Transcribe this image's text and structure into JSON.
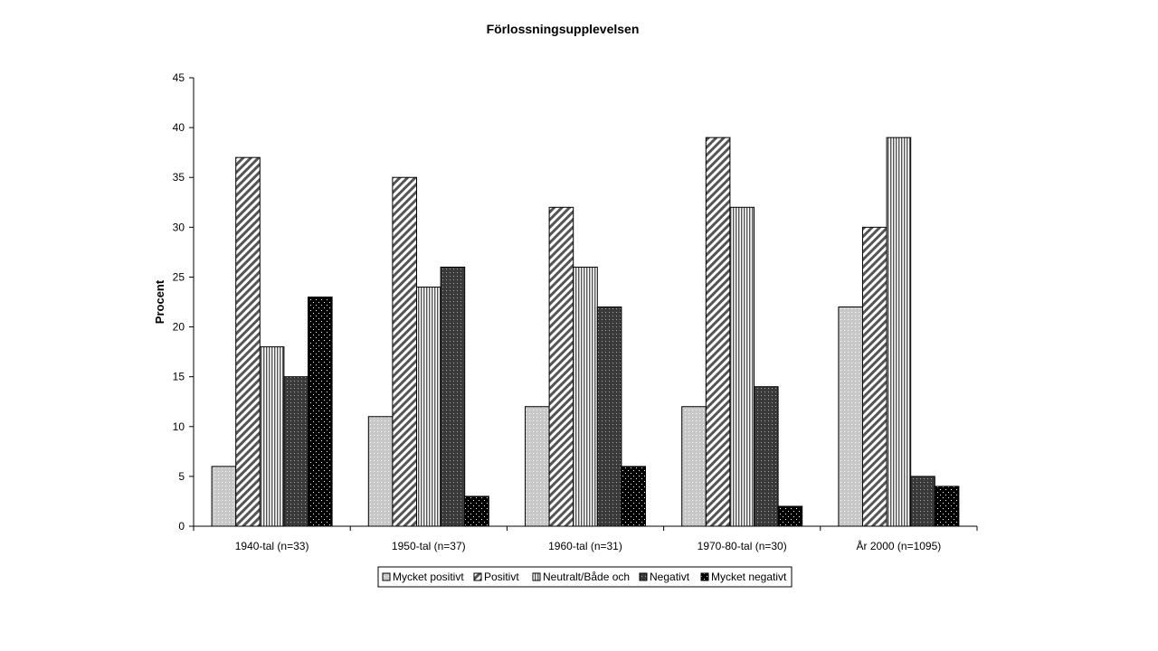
{
  "chart_data": {
    "type": "bar",
    "title": "Förlossningsupplevelsen",
    "xlabel": "",
    "ylabel": "Procent",
    "ylim": [
      0,
      45
    ],
    "yticks": [
      0,
      5,
      10,
      15,
      20,
      25,
      30,
      35,
      40,
      45
    ],
    "categories": [
      "1940-tal (n=33)",
      "1950-tal (n=37)",
      "1960-tal (n=31)",
      "1970-80-tal (n=30)",
      "År 2000 (n=1095)"
    ],
    "series": [
      {
        "name": "Mycket positivt",
        "pattern": "dots-light",
        "values": [
          6,
          11,
          12,
          12,
          22
        ]
      },
      {
        "name": "Positivt",
        "pattern": "diagonal",
        "values": [
          37,
          35,
          32,
          39,
          30
        ]
      },
      {
        "name": "Neutralt/Både och",
        "pattern": "vertical",
        "values": [
          18,
          24,
          26,
          32,
          39
        ]
      },
      {
        "name": "Negativt",
        "pattern": "dots-dark",
        "values": [
          15,
          26,
          22,
          14,
          5
        ]
      },
      {
        "name": "Mycket negativt",
        "pattern": "dots-black",
        "values": [
          23,
          3,
          6,
          2,
          4
        ]
      }
    ],
    "grid": false,
    "legend_position": "bottom"
  }
}
